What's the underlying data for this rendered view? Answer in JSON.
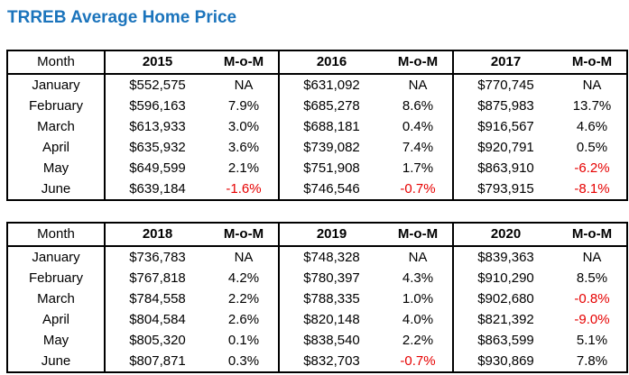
{
  "page": {
    "title": "TRREB Average Home Price"
  },
  "colors": {
    "title_accent": "#1b74bc",
    "negative_value": "#e60000",
    "table_border": "#000000"
  },
  "tables": [
    {
      "header": [
        "Month",
        "2015",
        "M-o-M",
        "2016",
        "M-o-M",
        "2017",
        "M-o-M"
      ],
      "rows": [
        [
          "January",
          "$552,575",
          "NA",
          "$631,092",
          "NA",
          "$770,745",
          "NA"
        ],
        [
          "February",
          "$596,163",
          "7.9%",
          "$685,278",
          "8.6%",
          "$875,983",
          "13.7%"
        ],
        [
          "March",
          "$613,933",
          "3.0%",
          "$688,181",
          "0.4%",
          "$916,567",
          "4.6%"
        ],
        [
          "April",
          "$635,932",
          "3.6%",
          "$739,082",
          "7.4%",
          "$920,791",
          "0.5%"
        ],
        [
          "May",
          "$649,599",
          "2.1%",
          "$751,908",
          "1.7%",
          "$863,910",
          "-6.2%"
        ],
        [
          "June",
          "$639,184",
          "-1.6%",
          "$746,546",
          "-0.7%",
          "$793,915",
          "-8.1%"
        ]
      ]
    },
    {
      "header": [
        "Month",
        "2018",
        "M-o-M",
        "2019",
        "M-o-M",
        "2020",
        "M-o-M"
      ],
      "rows": [
        [
          "January",
          "$736,783",
          "NA",
          "$748,328",
          "NA",
          "$839,363",
          "NA"
        ],
        [
          "February",
          "$767,818",
          "4.2%",
          "$780,397",
          "4.3%",
          "$910,290",
          "8.5%"
        ],
        [
          "March",
          "$784,558",
          "2.2%",
          "$788,335",
          "1.0%",
          "$902,680",
          "-0.8%"
        ],
        [
          "April",
          "$804,584",
          "2.6%",
          "$820,148",
          "4.0%",
          "$821,392",
          "-9.0%"
        ],
        [
          "May",
          "$805,320",
          "0.1%",
          "$838,540",
          "2.2%",
          "$863,599",
          "5.1%"
        ],
        [
          "June",
          "$807,871",
          "0.3%",
          "$832,703",
          "-0.7%",
          "$930,869",
          "7.8%"
        ]
      ]
    }
  ]
}
